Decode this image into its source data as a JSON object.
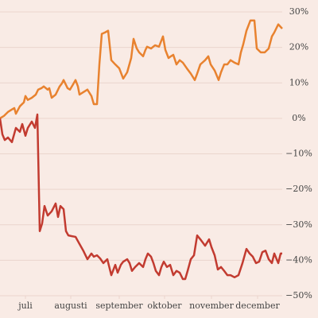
{
  "chart_data": {
    "type": "line",
    "series": [
      {
        "color": "#e8822f",
        "x": [
          0,
          2.5,
          5,
          7.5,
          9,
          10,
          12.5,
          15,
          16,
          17.5,
          20,
          22.5,
          24,
          26,
          27.5,
          30,
          31,
          32.5,
          35,
          37.5,
          39,
          40,
          42.5,
          44,
          46,
          47.5,
          49,
          50,
          52.5,
          55,
          57.5,
          59,
          61,
          62.5,
          64,
          66,
          68,
          70,
          72.5,
          75,
          77.5,
          80,
          82.5,
          84,
          86,
          87.5,
          90,
          91.5,
          92.5,
          95,
          97.5,
          100,
          102.5,
          104,
          106,
          107.5,
          109,
          111,
          113,
          115,
          117.5,
          120,
          122.5,
          124,
          126,
          129,
          131,
          132.5,
          135,
          137.5,
          139,
          141,
          143,
          145,
          147.5,
          150,
          151.5,
          153,
          155,
          157.5,
          160,
          161.5,
          164,
          166.5,
          169,
          171,
          172.5,
          175,
          177.5
        ],
        "values": [
          0,
          0.7,
          1.8,
          2.5,
          2.9,
          1.3,
          3.4,
          4.5,
          6.3,
          5.2,
          5.8,
          6.7,
          8.1,
          8.5,
          9.0,
          8.1,
          8.5,
          5.8,
          6.7,
          9.0,
          9.9,
          10.8,
          8.5,
          8.1,
          9.6,
          10.8,
          9.0,
          6.7,
          7.4,
          8.1,
          6.3,
          4.0,
          4.0,
          15.2,
          23.8,
          24.2,
          24.7,
          16.4,
          15.2,
          14.1,
          11.2,
          13.0,
          17.0,
          22.4,
          19.7,
          18.6,
          17.5,
          19.3,
          20.2,
          19.7,
          20.6,
          20.2,
          23.1,
          19.3,
          17.0,
          17.5,
          17.9,
          15.2,
          16.4,
          15.7,
          14.1,
          12.6,
          10.8,
          12.6,
          15.2,
          16.4,
          17.5,
          15.2,
          13.5,
          10.8,
          13.0,
          15.2,
          15.2,
          16.4,
          15.7,
          15.2,
          18.6,
          20.9,
          24.7,
          27.6,
          27.6,
          19.7,
          18.6,
          18.6,
          19.7,
          23.1,
          24.2,
          26.5,
          25.3
        ]
      },
      {
        "color": "#c23b30",
        "x": [
          0,
          1.5,
          3,
          5,
          7.5,
          10,
          12.5,
          14,
          16,
          17.5,
          20,
          22,
          23.5,
          25,
          26.5,
          28,
          30,
          32.5,
          35,
          36.5,
          38,
          40,
          41.5,
          43,
          45,
          47.5,
          50,
          52.5,
          55,
          57.5,
          59,
          61,
          63,
          65,
          67.5,
          70,
          72.5,
          74,
          76,
          77.5,
          80,
          81.5,
          83,
          85,
          87.5,
          90,
          91.5,
          93,
          95,
          96.5,
          98,
          100,
          101.5,
          103,
          105,
          107,
          109,
          111,
          113,
          115,
          116.5,
          118,
          120,
          122,
          124,
          126,
          129,
          131.5,
          133,
          135,
          137,
          139,
          141,
          143,
          145,
          147.5,
          150,
          152.5,
          155,
          157,
          159,
          161,
          163,
          165,
          167,
          169,
          171,
          172.5,
          175,
          176.5,
          177.5
        ],
        "values": [
          0,
          -4.5,
          -6.1,
          -5.4,
          -6.7,
          -2.7,
          -3.8,
          -1.6,
          -4.9,
          -2.7,
          -0.9,
          -2.7,
          1.1,
          -31.8,
          -29.6,
          -24.7,
          -27.4,
          -26.2,
          -24.0,
          -27.8,
          -24.7,
          -25.6,
          -31.8,
          -33.0,
          -33.2,
          -33.4,
          -35.4,
          -37.4,
          -39.7,
          -38.1,
          -39.0,
          -38.6,
          -39.5,
          -40.8,
          -39.7,
          -44.2,
          -41.3,
          -43.5,
          -41.3,
          -40.4,
          -39.7,
          -40.8,
          -43.0,
          -41.9,
          -40.8,
          -41.9,
          -39.7,
          -38.1,
          -39.0,
          -40.8,
          -43.0,
          -44.2,
          -41.9,
          -40.4,
          -41.9,
          -41.3,
          -44.2,
          -43.0,
          -43.5,
          -45.3,
          -45.3,
          -43.0,
          -39.7,
          -38.6,
          -33.0,
          -34.1,
          -35.9,
          -34.1,
          -36.3,
          -38.6,
          -42.6,
          -41.9,
          -43.0,
          -44.2,
          -44.2,
          -44.8,
          -44.2,
          -40.8,
          -36.8,
          -38.1,
          -39.0,
          -40.8,
          -40.4,
          -37.7,
          -37.3,
          -39.7,
          -40.8,
          -38.1,
          -40.8,
          -38.1,
          -38.1
        ]
      }
    ],
    "xlim": [
      0,
      177.5
    ],
    "xticks": [
      {
        "value": 16,
        "label": "juli"
      },
      {
        "value": 44.5,
        "label": "augusti"
      },
      {
        "value": 75,
        "label": "september"
      },
      {
        "value": 103.5,
        "label": "oktober"
      },
      {
        "value": 133,
        "label": "november"
      },
      {
        "value": 162,
        "label": "december"
      }
    ],
    "ylim": [
      -50,
      30
    ],
    "yticks": [
      {
        "value": 30,
        "label": "30%"
      },
      {
        "value": 20,
        "label": "20%"
      },
      {
        "value": 10,
        "label": "10%"
      },
      {
        "value": 0,
        "label": "0%"
      },
      {
        "value": -10,
        "label": "−10%"
      },
      {
        "value": -20,
        "label": "−20%"
      },
      {
        "value": -30,
        "label": "−30%"
      },
      {
        "value": -40,
        "label": "−40%"
      },
      {
        "value": -50,
        "label": "−50%"
      }
    ],
    "grid": true
  }
}
